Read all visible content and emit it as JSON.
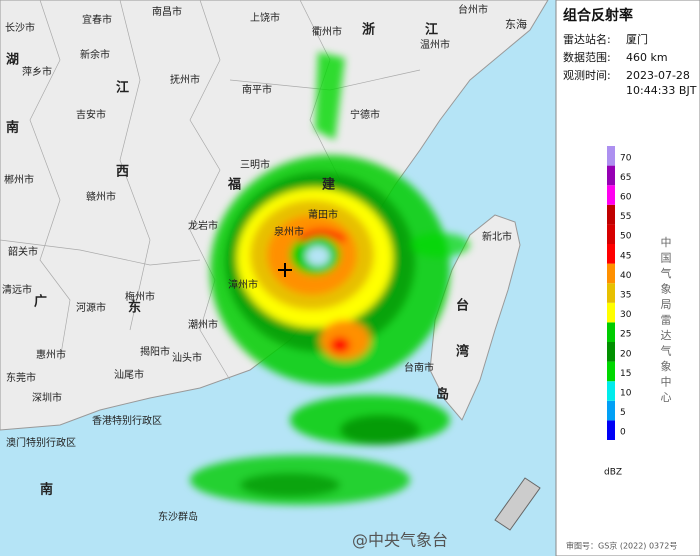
{
  "panel": {
    "title": "组合反射率",
    "info": [
      {
        "label": "雷达站名:",
        "value": "厦门"
      },
      {
        "label": "数据范围:",
        "value": "460 km"
      },
      {
        "label": "观测时间:",
        "value": "2023-07-28"
      }
    ],
    "time": "10:44:33 BJT",
    "agency": "中国气象局雷达气象中心",
    "approval": "审图号：GS京 (2022) 0372号"
  },
  "legend": {
    "unit": "dBZ",
    "levels": [
      {
        "value": 0,
        "color": "#0000f6"
      },
      {
        "value": 5,
        "color": "#01a0f6"
      },
      {
        "value": 10,
        "color": "#00ecec"
      },
      {
        "value": 15,
        "color": "#00d800"
      },
      {
        "value": 20,
        "color": "#019000"
      },
      {
        "value": 25,
        "color": "#00cc00"
      },
      {
        "value": 30,
        "color": "#ffff00"
      },
      {
        "value": 35,
        "color": "#e7c000"
      },
      {
        "value": 40,
        "color": "#ff9000"
      },
      {
        "value": 45,
        "color": "#ff0000"
      },
      {
        "value": 50,
        "color": "#d60000"
      },
      {
        "value": 55,
        "color": "#c00000"
      },
      {
        "value": 60,
        "color": "#ff00f0"
      },
      {
        "value": 65,
        "color": "#9600b4"
      },
      {
        "value": 70,
        "color": "#ad90f0"
      }
    ]
  },
  "map": {
    "labels": [
      "长沙市",
      "宜春市",
      "南昌市",
      "上饶市",
      "衢州市",
      "浙",
      "江",
      "台州市",
      "温州市",
      "东海",
      "萍乡市",
      "新余市",
      "湖",
      "抚州市",
      "江",
      "南",
      "吉安市",
      "南平市",
      "宁德市",
      "西",
      "三明市",
      "郴州市",
      "赣州市",
      "福",
      "建",
      "莆田市",
      "龙岩市",
      "泉州市",
      "韶关市",
      "漳州市",
      "梅州市",
      "广",
      "东",
      "河源市",
      "清远市",
      "潮州市",
      "揭阳市",
      "汕头市",
      "惠州市",
      "汕尾市",
      "东莞市",
      "深圳市",
      "香港特别行政区",
      "澳门特别行政区",
      "台",
      "湾",
      "新北市",
      "台南市",
      "岛",
      "南",
      "东沙群岛"
    ],
    "watermark": "@中央气象台"
  }
}
